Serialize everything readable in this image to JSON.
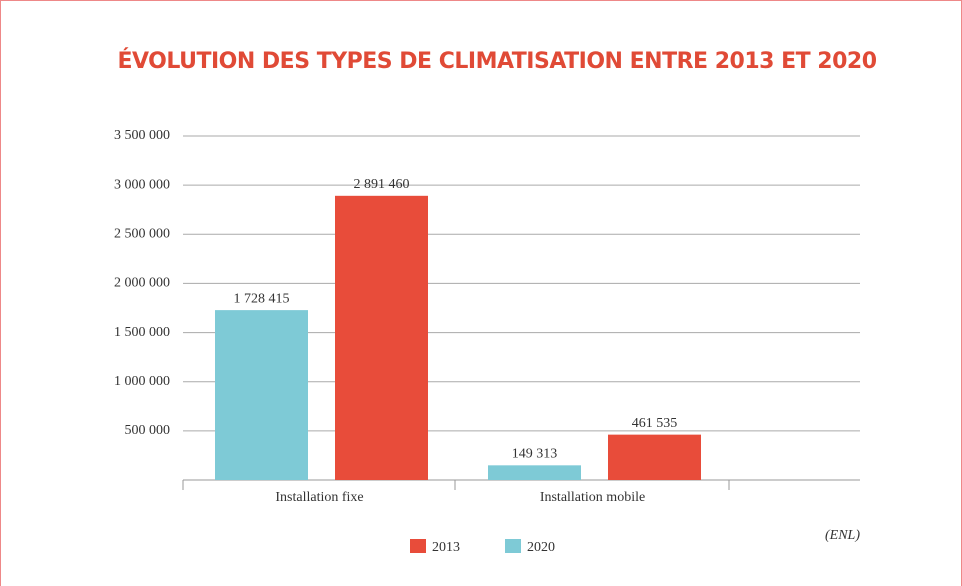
{
  "chart_data": {
    "type": "bar",
    "title": "ÉVOLUTION DES TYPES DE CLIMATISATION ENTRE 2013 ET 2020",
    "categories": [
      "Installation fixe",
      "Installation mobile"
    ],
    "series": [
      {
        "name": "2020",
        "color": "#7ecad6",
        "values": [
          1728415,
          149313
        ],
        "value_labels": [
          "1 728 415",
          "149 313"
        ]
      },
      {
        "name": "2013",
        "color": "#e84c3a",
        "values": [
          2891460,
          461535
        ],
        "value_labels": [
          "2 891 460",
          "461 535"
        ]
      }
    ],
    "ylim": [
      0,
      3500000
    ],
    "yticks": [
      {
        "value": 500000,
        "label": "500 000"
      },
      {
        "value": 1000000,
        "label": "1 000 000"
      },
      {
        "value": 1500000,
        "label": "1 500 000"
      },
      {
        "value": 2000000,
        "label": "2 000 000"
      },
      {
        "value": 2500000,
        "label": "2 500 000"
      },
      {
        "value": 3000000,
        "label": "3 000 000"
      },
      {
        "value": 3500000,
        "label": "3 500 000"
      }
    ],
    "grid": true,
    "source": "(ENL)"
  }
}
